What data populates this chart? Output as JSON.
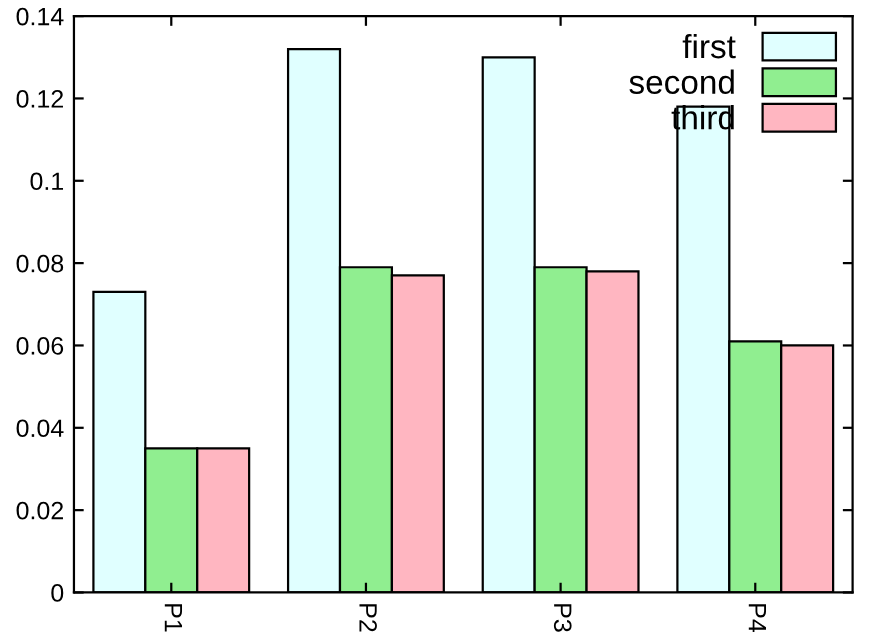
{
  "chart_data": {
    "type": "bar",
    "categories": [
      "P1",
      "P2",
      "P3",
      "P4"
    ],
    "series": [
      {
        "name": "first",
        "color": "#e0ffff",
        "values": [
          0.073,
          0.132,
          0.13,
          0.118
        ]
      },
      {
        "name": "second",
        "color": "#90ee90",
        "values": [
          0.035,
          0.079,
          0.079,
          0.061
        ]
      },
      {
        "name": "third",
        "color": "#ffb6c1",
        "values": [
          0.035,
          0.077,
          0.078,
          0.06
        ]
      }
    ],
    "ylim": [
      0,
      0.14
    ],
    "yticks": [
      0,
      0.02,
      0.04,
      0.06,
      0.08,
      0.1,
      0.12,
      0.14
    ],
    "grid": false,
    "legend": "top right"
  }
}
